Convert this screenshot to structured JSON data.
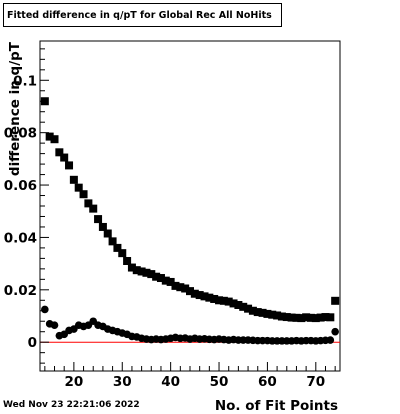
{
  "chart_data": {
    "type": "scatter",
    "title": "Fitted difference in q/pT for Global Rec All NoHits",
    "xlabel": "No. of Fit Points",
    "ylabel": "difference in q/pT",
    "xlim": [
      13,
      75
    ],
    "ylim": [
      -0.011,
      0.115
    ],
    "x_ticks": [
      20,
      30,
      40,
      50,
      60,
      70
    ],
    "x_tick_labels": [
      "20",
      "30",
      "40",
      "50",
      "60",
      "70"
    ],
    "y_ticks": [
      0,
      0.02,
      0.04,
      0.06,
      0.08
    ],
    "y_tick_labels": [
      "0",
      "0.02",
      "0.04",
      "0.06",
      "0.08"
    ],
    "y_hidden_tick_label": "0.1",
    "reference_line": {
      "y": 0,
      "color": "#ff0000"
    },
    "grid": false,
    "legend": "none",
    "series": [
      {
        "marker": "square",
        "color": "#000000",
        "x": [
          14,
          15,
          16,
          17,
          18,
          19,
          20,
          21,
          22,
          23,
          24,
          25,
          26,
          27,
          28,
          29,
          30,
          31,
          32,
          33,
          34,
          35,
          36,
          37,
          38,
          39,
          40,
          41,
          42,
          43,
          44,
          45,
          46,
          47,
          48,
          49,
          50,
          51,
          52,
          53,
          54,
          55,
          56,
          57,
          58,
          59,
          60,
          61,
          62,
          63,
          64,
          65,
          66,
          67,
          68,
          69,
          70,
          71,
          72,
          73,
          74
        ],
        "y": [
          0.092,
          0.0785,
          0.0775,
          0.0725,
          0.0705,
          0.0675,
          0.062,
          0.059,
          0.0565,
          0.053,
          0.051,
          0.047,
          0.044,
          0.0415,
          0.0385,
          0.036,
          0.034,
          0.031,
          0.0285,
          0.0275,
          0.027,
          0.0265,
          0.026,
          0.025,
          0.0245,
          0.0235,
          0.023,
          0.0215,
          0.021,
          0.0205,
          0.0195,
          0.0185,
          0.018,
          0.0175,
          0.017,
          0.0165,
          0.016,
          0.0158,
          0.0155,
          0.0148,
          0.0142,
          0.0135,
          0.0128,
          0.012,
          0.0115,
          0.0112,
          0.0108,
          0.0105,
          0.0102,
          0.0098,
          0.0096,
          0.0094,
          0.0093,
          0.0092,
          0.0095,
          0.0093,
          0.0092,
          0.0094,
          0.0096,
          0.0095,
          0.0158
        ]
      },
      {
        "marker": "circle",
        "color": "#000000",
        "x": [
          14,
          15,
          16,
          17,
          18,
          19,
          20,
          21,
          22,
          23,
          24,
          25,
          26,
          27,
          28,
          29,
          30,
          31,
          32,
          33,
          34,
          35,
          36,
          37,
          38,
          39,
          40,
          41,
          42,
          43,
          44,
          45,
          46,
          47,
          48,
          49,
          50,
          51,
          52,
          53,
          54,
          55,
          56,
          57,
          58,
          59,
          60,
          61,
          62,
          63,
          64,
          65,
          66,
          67,
          68,
          69,
          70,
          71,
          72,
          73,
          74
        ],
        "y": [
          0.0125,
          0.007,
          0.0065,
          0.0025,
          0.003,
          0.0045,
          0.005,
          0.0065,
          0.006,
          0.0065,
          0.008,
          0.0065,
          0.006,
          0.005,
          0.0045,
          0.004,
          0.0035,
          0.003,
          0.0022,
          0.002,
          0.0015,
          0.0012,
          0.001,
          0.0012,
          0.001,
          0.0012,
          0.0015,
          0.0018,
          0.0015,
          0.0016,
          0.0012,
          0.0015,
          0.0012,
          0.0013,
          0.0011,
          0.001,
          0.0012,
          0.001,
          0.0008,
          0.001,
          0.0008,
          0.0008,
          0.0008,
          0.0007,
          0.0006,
          0.0006,
          0.0006,
          0.0005,
          0.0005,
          0.0005,
          0.0005,
          0.0005,
          0.0006,
          0.0005,
          0.0006,
          0.0006,
          0.0005,
          0.0006,
          0.0007,
          0.0008,
          0.004
        ]
      }
    ]
  },
  "footer": {
    "timestamp": "Wed Nov 23 22:21:06 2022"
  }
}
